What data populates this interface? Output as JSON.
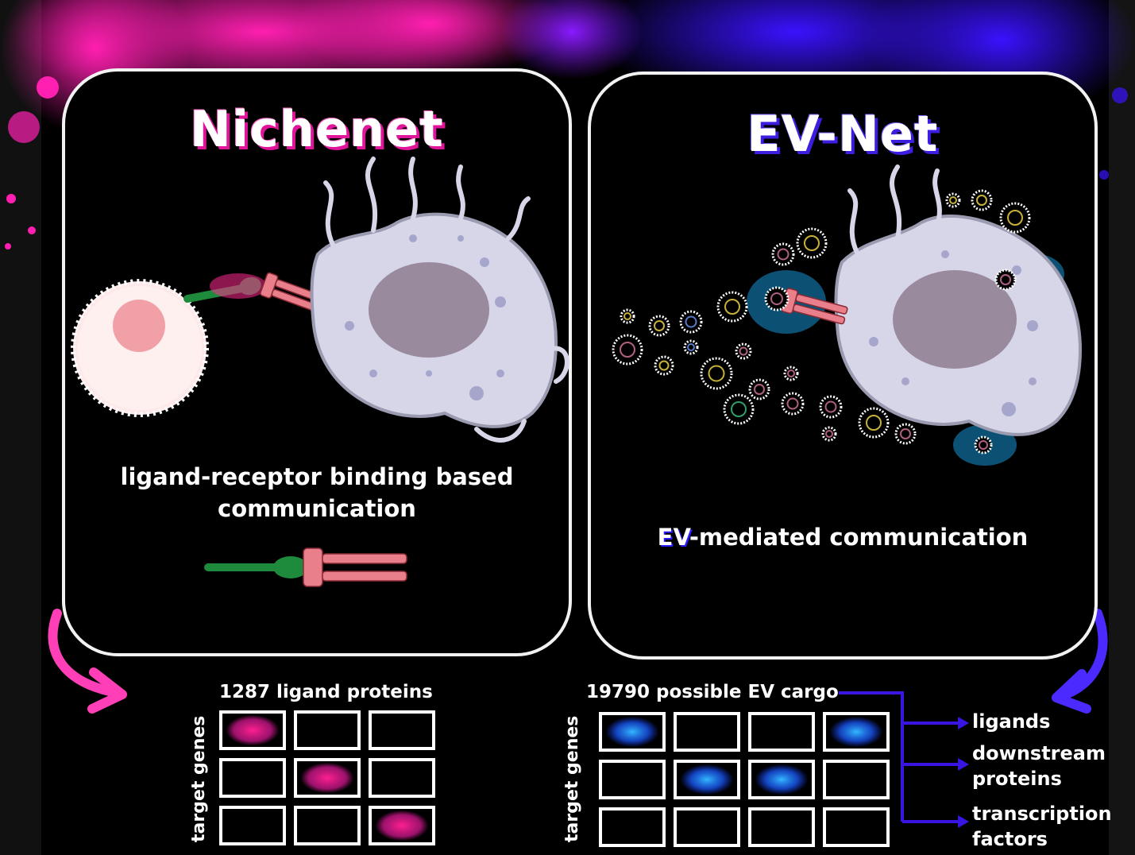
{
  "panels": {
    "left": {
      "title": "Nichenet",
      "caption_line1": "ligand-receptor binding based",
      "caption_line2": "communication"
    },
    "right": {
      "title": "EV-Net",
      "caption_prefix": "EV",
      "caption_rest": "-mediated communication"
    }
  },
  "grids": {
    "left": {
      "title": "1287 ligand proteins",
      "row_label": "target genes",
      "rows": 3,
      "cols": 3,
      "filled_cells": [
        [
          0,
          0
        ],
        [
          1,
          1
        ],
        [
          2,
          2
        ]
      ],
      "fill_color": "#ff1f8f"
    },
    "right": {
      "title": "19790 possible EV cargo",
      "row_label": "target genes",
      "rows": 3,
      "cols": 4,
      "filled_cells": [
        [
          0,
          0
        ],
        [
          0,
          3
        ],
        [
          1,
          1
        ],
        [
          1,
          2
        ]
      ],
      "fill_color": "#1a8cff"
    }
  },
  "outputs": {
    "ligands": "ligands",
    "downstream": "downstream proteins",
    "transcription": "transcription factors"
  },
  "colors": {
    "pink_accent": "#e0159a",
    "blue_accent": "#3b1ee0",
    "ligand_green": "#1e8a3c",
    "receptor_pink": "#e97f8a",
    "cell_lavender": "#d6d6e8",
    "nucleus": "#9a8a9e"
  }
}
